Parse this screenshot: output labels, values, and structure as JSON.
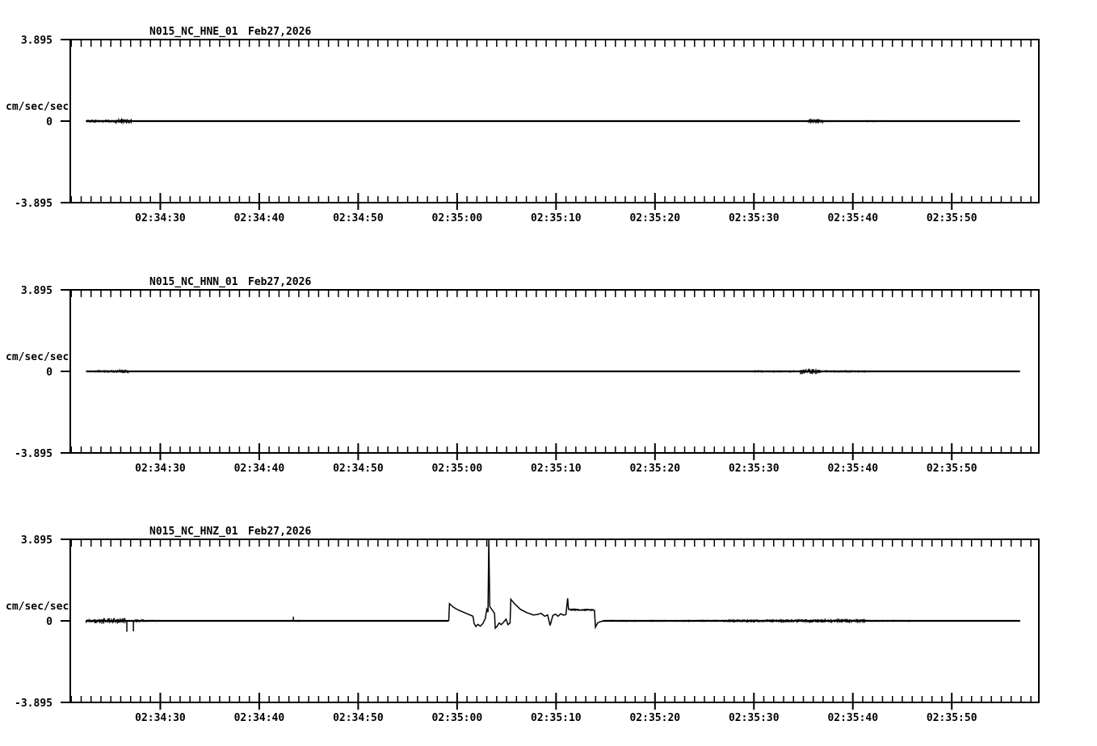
{
  "figure": {
    "background": "#ffffff",
    "ink": "#000000"
  },
  "chart_data": {
    "type": "line",
    "kind": "three-component-seismogram",
    "ylabel": "cm/sec/sec",
    "ylim": [
      -3.895,
      3.895
    ],
    "ytick_values": [
      3.895,
      0,
      -3.895
    ],
    "ytick_labels": [
      "3.895",
      "0",
      "-3.895"
    ],
    "x_axis": {
      "window_seconds": 97.9,
      "minor_tick_interval_s": 1,
      "minor_tick_first_offset_s": 0.1,
      "major_tick_offsets_s": [
        9.1,
        19.1,
        29.1,
        39.1,
        49.1,
        59.1,
        69.1,
        79.1,
        89.1
      ],
      "major_tick_labels": [
        "02:34:30",
        "02:34:40",
        "02:34:50",
        "02:35:00",
        "02:35:10",
        "02:35:20",
        "02:35:30",
        "02:35:40",
        "02:35:50"
      ]
    },
    "panels": [
      {
        "id": "hne",
        "channel": "HNE",
        "title_station": "N015_NC_HNE_01",
        "title_date": "Feb27,2026",
        "trace": {
          "start_s": 1.6,
          "end_s": 96.0,
          "noise_bands": [
            [
              1.6,
              4.6,
              0.08,
              0
            ],
            [
              4.6,
              6.2,
              0.14,
              0
            ],
            [
              69.2,
              74.4,
              0.04,
              0
            ],
            [
              74.6,
              76.1,
              0.12,
              0
            ],
            [
              76.1,
              77.6,
              0.05,
              0
            ],
            [
              80.4,
              82.2,
              0.05,
              0
            ]
          ],
          "spikes": [],
          "event_points": []
        }
      },
      {
        "id": "hnn",
        "channel": "HNN",
        "title_station": "N015_NC_HNN_01",
        "title_date": "Feb27,2026",
        "trace": {
          "start_s": 1.6,
          "end_s": 96.0,
          "noise_bands": [
            [
              2.5,
              4.4,
              0.08,
              0
            ],
            [
              4.4,
              5.9,
              0.12,
              0
            ],
            [
              63.0,
              69.0,
              0.03,
              0
            ],
            [
              69.0,
              73.6,
              0.06,
              0
            ],
            [
              73.8,
              75.8,
              0.14,
              0
            ],
            [
              75.8,
              80.6,
              0.06,
              0
            ],
            [
              86.0,
              92.0,
              0.02,
              0
            ]
          ],
          "spikes": [],
          "event_points": []
        }
      },
      {
        "id": "hnz",
        "channel": "HNZ",
        "title_station": "N015_NC_HNZ_01",
        "title_date": "Feb27,2026",
        "trace": {
          "start_s": 1.6,
          "end_s": 96.0,
          "noise_bands": [
            [
              1.6,
              3.0,
              0.12,
              0
            ],
            [
              3.0,
              5.6,
              0.16,
              0
            ],
            [
              6.5,
              7.5,
              0.09,
              0
            ],
            [
              7.5,
              9.0,
              0.05,
              0
            ],
            [
              21.8,
              23.2,
              0.05,
              0
            ],
            [
              30.0,
              37.5,
              0.04,
              0
            ],
            [
              50.5,
              52.9,
              0.06,
              0.52
            ],
            [
              53.8,
              62.0,
              0.05,
              0
            ],
            [
              62.0,
              66.5,
              0.06,
              0
            ],
            [
              66.5,
              72.0,
              0.09,
              0
            ],
            [
              72.0,
              76.0,
              0.1,
              0
            ],
            [
              76.0,
              80.4,
              0.11,
              0
            ],
            [
              80.4,
              85.0,
              0.05,
              0
            ],
            [
              85.0,
              96.0,
              0.04,
              0
            ]
          ],
          "spikes": [
            [
              5.72,
              -0.52
            ],
            [
              6.38,
              -0.5
            ],
            [
              22.55,
              0.2
            ]
          ],
          "event_points": [
            [
              38.25,
              0
            ],
            [
              38.33,
              0.82
            ],
            [
              38.7,
              0.66
            ],
            [
              39.2,
              0.52
            ],
            [
              39.8,
              0.4
            ],
            [
              40.3,
              0.3
            ],
            [
              40.7,
              0.22
            ],
            [
              40.82,
              -0.12
            ],
            [
              41.0,
              -0.27
            ],
            [
              41.2,
              -0.17
            ],
            [
              41.45,
              -0.25
            ],
            [
              41.7,
              -0.13
            ],
            [
              41.95,
              0.12
            ],
            [
              42.1,
              0.55
            ],
            [
              42.22,
              0.42
            ],
            [
              42.3,
              3.895
            ],
            [
              42.4,
              0.68
            ],
            [
              42.65,
              0.52
            ],
            [
              42.88,
              0.36
            ],
            [
              42.96,
              -0.35
            ],
            [
              43.15,
              -0.25
            ],
            [
              43.35,
              -0.1
            ],
            [
              43.55,
              -0.18
            ],
            [
              43.8,
              -0.06
            ],
            [
              44.05,
              0.08
            ],
            [
              44.25,
              -0.18
            ],
            [
              44.45,
              -0.1
            ],
            [
              44.53,
              1.03
            ],
            [
              44.9,
              0.82
            ],
            [
              45.5,
              0.55
            ],
            [
              46.1,
              0.4
            ],
            [
              46.8,
              0.28
            ],
            [
              47.25,
              0.31
            ],
            [
              47.6,
              0.36
            ],
            [
              47.95,
              0.22
            ],
            [
              48.25,
              0.28
            ],
            [
              48.5,
              -0.22
            ],
            [
              48.78,
              0.26
            ],
            [
              49.05,
              0.32
            ],
            [
              49.3,
              0.22
            ],
            [
              49.58,
              0.34
            ],
            [
              49.85,
              0.27
            ],
            [
              50.1,
              0.3
            ],
            [
              50.27,
              1.08
            ],
            [
              50.36,
              0.55
            ],
            [
              51.0,
              0.56
            ],
            [
              51.6,
              0.51
            ],
            [
              52.2,
              0.55
            ],
            [
              52.7,
              0.52
            ],
            [
              52.98,
              0.5
            ],
            [
              53.08,
              -0.3
            ],
            [
              53.3,
              -0.1
            ],
            [
              53.6,
              -0.04
            ],
            [
              53.9,
              0
            ]
          ]
        }
      }
    ]
  }
}
